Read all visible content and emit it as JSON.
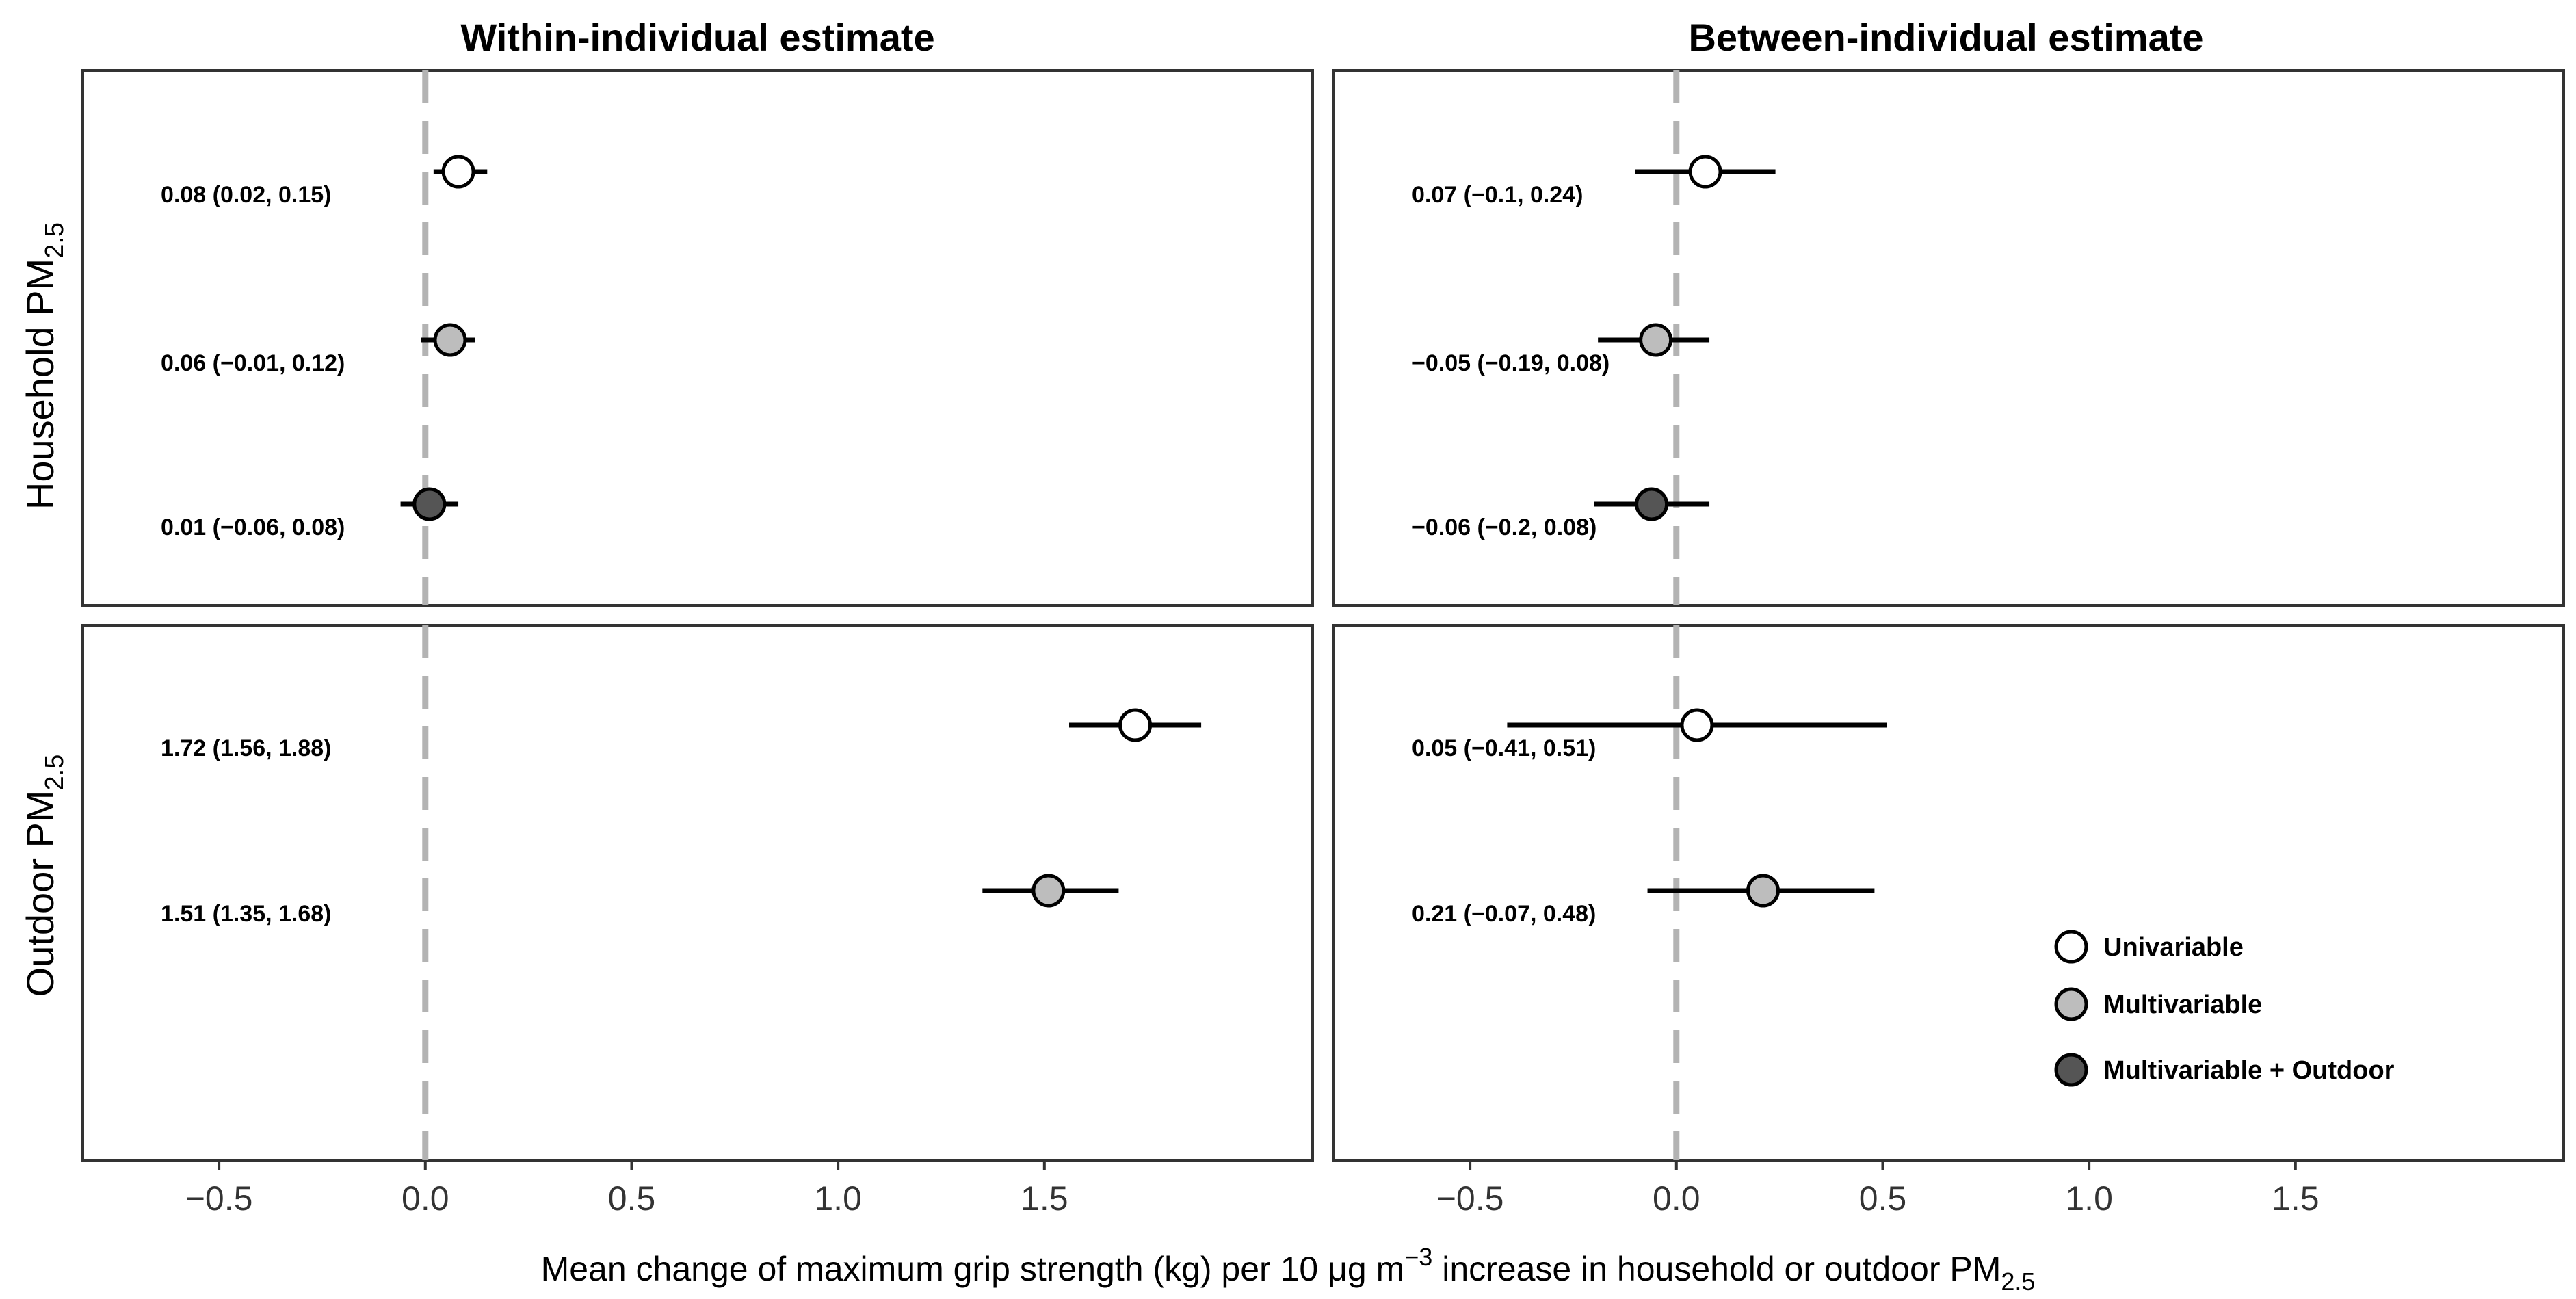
{
  "chart_data": {
    "type": "forest",
    "columns": [
      "Within-individual estimate",
      "Between-individual estimate"
    ],
    "rows": [
      {
        "main": "Household PM",
        "sub": "2.5"
      },
      {
        "main": "Outdoor PM",
        "sub": "2.5"
      }
    ],
    "xlabel": {
      "before": "Mean change of maximum grip strength (kg) per 10 μg m",
      "sup": "−3",
      "after": " increase in household or outdoor PM",
      "sub": "2.5"
    },
    "xlim": [
      -0.83,
      2.15
    ],
    "xticks": [
      -0.5,
      0.0,
      0.5,
      1.0,
      1.5
    ],
    "xtick_labels": [
      "−0.5",
      "0.0",
      "0.5",
      "1.0",
      "1.5"
    ],
    "reference_line": 0,
    "legend": [
      {
        "key": "uni",
        "label": "Univariable",
        "color": "#ffffff"
      },
      {
        "key": "multi",
        "label": "Multivariable",
        "color": "#bdbdbd"
      },
      {
        "key": "multi_out",
        "label": "Multivariable + Outdoor",
        "color": "#555555"
      }
    ],
    "panels": [
      {
        "col": 0,
        "row": 0,
        "estimates": [
          {
            "model": "uni",
            "est": 0.08,
            "lo": 0.02,
            "hi": 0.15,
            "text": "0.08 (0.02, 0.15)"
          },
          {
            "model": "multi",
            "est": 0.06,
            "lo": -0.01,
            "hi": 0.12,
            "text": "0.06 (−0.01, 0.12)"
          },
          {
            "model": "multi_out",
            "est": 0.01,
            "lo": -0.06,
            "hi": 0.08,
            "text": "0.01 (−0.06, 0.08)"
          }
        ]
      },
      {
        "col": 1,
        "row": 0,
        "estimates": [
          {
            "model": "uni",
            "est": 0.07,
            "lo": -0.1,
            "hi": 0.24,
            "text": "0.07 (−0.1, 0.24)"
          },
          {
            "model": "multi",
            "est": -0.05,
            "lo": -0.19,
            "hi": 0.08,
            "text": "−0.05 (−0.19, 0.08)"
          },
          {
            "model": "multi_out",
            "est": -0.06,
            "lo": -0.2,
            "hi": 0.08,
            "text": "−0.06 (−0.2, 0.08)"
          }
        ]
      },
      {
        "col": 0,
        "row": 1,
        "estimates": [
          {
            "model": "uni",
            "est": 1.72,
            "lo": 1.56,
            "hi": 1.88,
            "text": "1.72 (1.56, 1.88)"
          },
          {
            "model": "multi",
            "est": 1.51,
            "lo": 1.35,
            "hi": 1.68,
            "text": "1.51 (1.35, 1.68)"
          }
        ]
      },
      {
        "col": 1,
        "row": 1,
        "estimates": [
          {
            "model": "uni",
            "est": 0.05,
            "lo": -0.41,
            "hi": 0.51,
            "text": "0.05 (−0.41, 0.51)"
          },
          {
            "model": "multi",
            "est": 0.21,
            "lo": -0.07,
            "hi": 0.48,
            "text": "0.21 (−0.07, 0.48)"
          }
        ]
      }
    ]
  }
}
